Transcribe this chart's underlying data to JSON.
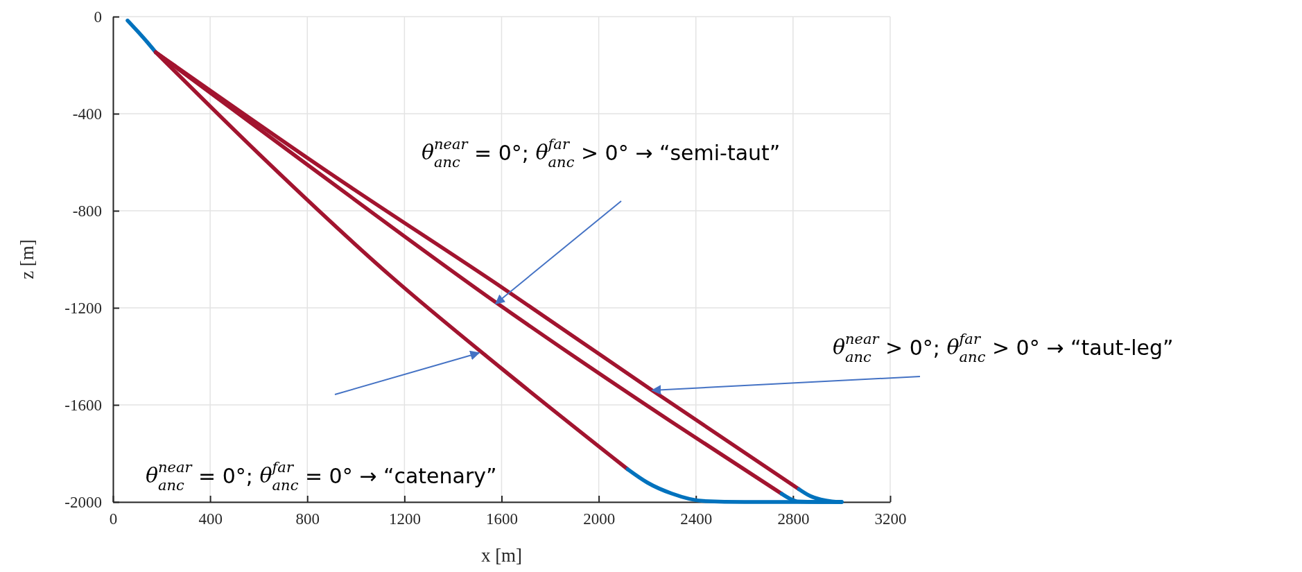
{
  "chart_data": {
    "type": "line",
    "xlabel": "x [m]",
    "ylabel": "z [m]",
    "xlim": [
      0,
      3200
    ],
    "ylim": [
      -2000,
      0
    ],
    "xticks": [
      0,
      400,
      800,
      1200,
      1600,
      2000,
      2400,
      2800,
      3200
    ],
    "yticks": [
      -2000,
      -1600,
      -1200,
      -800,
      -400,
      0
    ],
    "grid": true,
    "marker": "none",
    "line_style": "solid",
    "series": [
      {
        "color": "#0072bd",
        "x": [
          60,
          100,
          140,
          176
        ],
        "values": [
          -16,
          -59,
          -104,
          -147
        ]
      },
      {
        "color": "#a2142f",
        "x": [
          176,
          600,
          1150,
          1600,
          2119
        ],
        "values": [
          -147,
          -565,
          -1075,
          -1450,
          -1865
        ]
      },
      {
        "color": "#a2142f",
        "x": [
          176,
          800,
          1580,
          2300,
          2753
        ],
        "values": [
          -147,
          -610,
          -1180,
          -1670,
          -1966
        ]
      },
      {
        "color": "#a2142f",
        "x": [
          176,
          900,
          1600,
          2220,
          2824
        ],
        "values": [
          -147,
          -650,
          -1115,
          -1540,
          -1947
        ]
      },
      {
        "color": "#0072bd",
        "x": [
          2119,
          2200,
          2300,
          2430,
          2600,
          3000
        ],
        "values": [
          -1865,
          -1920,
          -1965,
          -1996,
          -2000,
          -2000
        ]
      },
      {
        "color": "#0072bd",
        "x": [
          2753,
          2790,
          2818,
          2900,
          3000
        ],
        "values": [
          -1966,
          -1988,
          -1998,
          -2000,
          -2000
        ]
      },
      {
        "color": "#0072bd",
        "x": [
          2824,
          2870,
          2914,
          2960,
          3000
        ],
        "values": [
          -1947,
          -1975,
          -1990,
          -1998,
          -2000
        ]
      }
    ],
    "annotations": [
      "θ$^{near}$$_{anc}$ = 0°; θ$^{far}$$_{anc}$ > 0°  →  “semi-taut”",
      {
        "text": "θ$^{near}$$_{anc}$ > 0°; θ$^{far}$$_{anc}$ > 0°  →  “taut-leg”",
        "x": 2220,
        "y": -1540
      },
      "θ$^{near}$$_{anc}$ = 0°; θ$^{far}$$_{anc}$ = 0°  →  “catenary”"
    ]
  }
}
